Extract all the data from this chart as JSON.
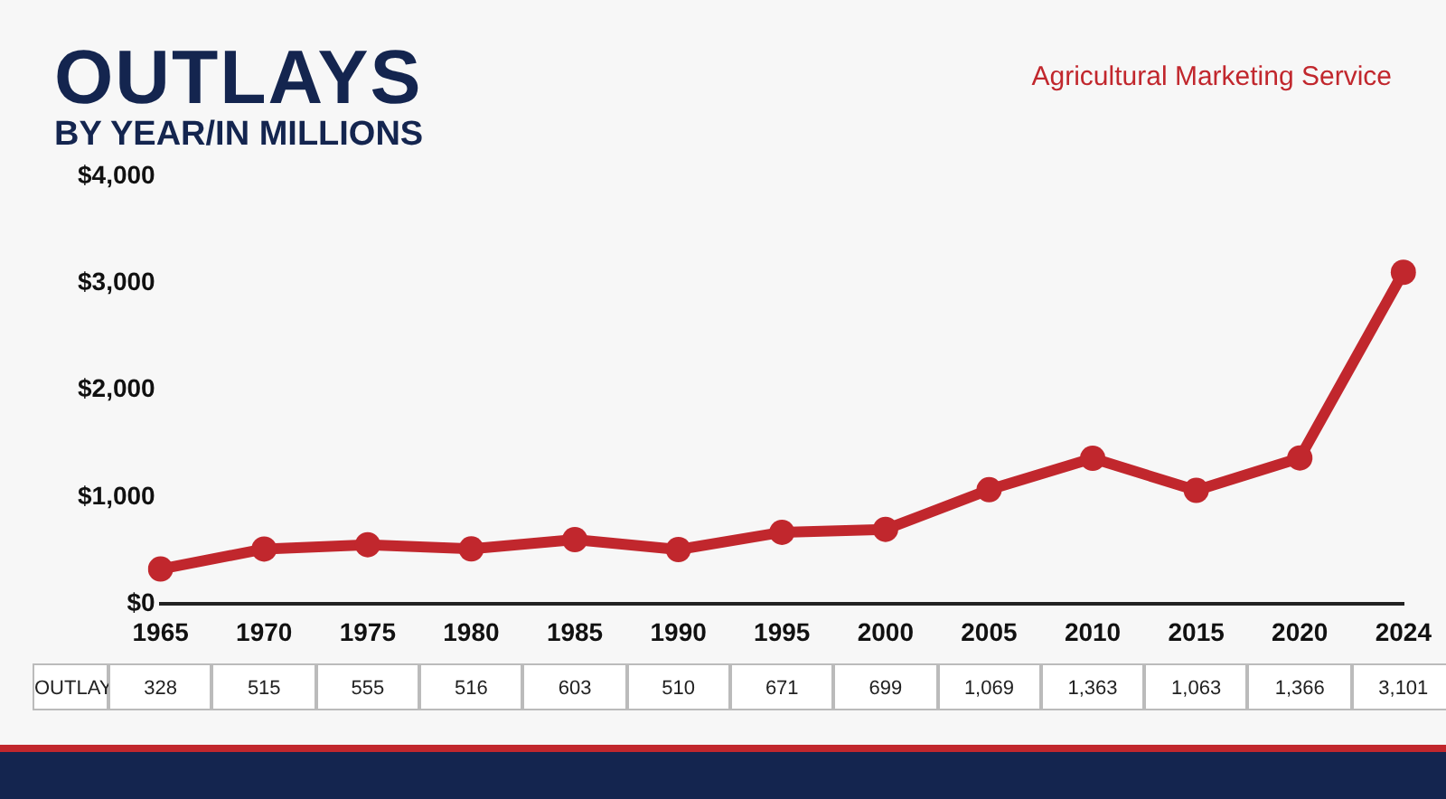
{
  "chart_data": {
    "type": "line",
    "title": "OUTLAYS",
    "subtitle": "BY YEAR/IN MILLIONS",
    "annotations": [
      "Agricultural Marketing Service",
      "OUTLAY"
    ],
    "categories": [
      "1965",
      "1970",
      "1975",
      "1980",
      "1985",
      "1990",
      "1995",
      "2000",
      "2005",
      "2010",
      "2015",
      "2020",
      "2024"
    ],
    "series": [
      {
        "color": "#c1272d",
        "values": [
          328,
          515,
          555,
          516,
          603,
          510,
          671,
          699,
          1069,
          1363,
          1063,
          1366,
          3101
        ],
        "value_labels": [
          "328",
          "515",
          "555",
          "516",
          "603",
          "510",
          "671",
          "699",
          "1,069",
          "1,363",
          "1,063",
          "1,366",
          "3,101"
        ]
      }
    ],
    "ylim": [
      0,
      4000
    ],
    "yticks": [
      {
        "value": 0,
        "label": "$0"
      },
      {
        "value": 1000,
        "label": "$1,000"
      },
      {
        "value": 2000,
        "label": "$2,000"
      },
      {
        "value": 3000,
        "label": "$3,000"
      },
      {
        "value": 4000,
        "label": "$4,000"
      }
    ],
    "grid": false,
    "legend": false,
    "marker": "circle",
    "line_style": "solid"
  }
}
